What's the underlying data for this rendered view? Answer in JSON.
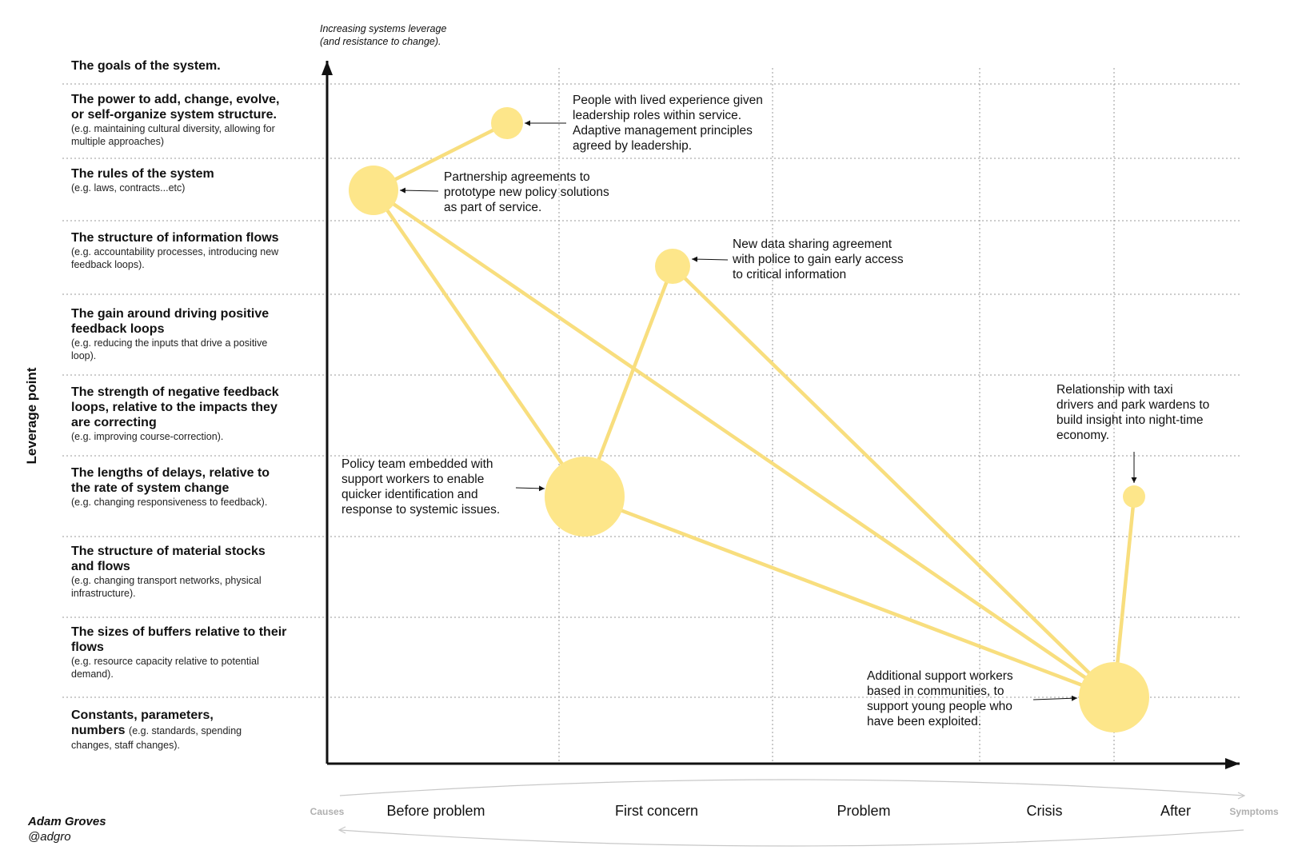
{
  "y_axis_label": "Leverage point",
  "top_note": [
    "Increasing systems leverage",
    "(and resistance to change)."
  ],
  "leverage_points": [
    {
      "title": "The goals of the system.",
      "desc": ""
    },
    {
      "title": "The power to add, change, evolve, or self-organize system structure.",
      "desc": "(e.g. maintaining cultural diversity, allowing for multiple approaches)"
    },
    {
      "title": "The rules of the system",
      "desc": "(e.g. laws, contracts...etc)"
    },
    {
      "title": "The structure of information flows",
      "desc": "(e.g. accountability processes, introducing new feedback loops)."
    },
    {
      "title": "The gain around driving positive feedback loops",
      "desc": "(e.g. reducing the inputs that drive a positive loop)."
    },
    {
      "title": "The strength of negative feedback loops, relative to the impacts they are correcting",
      "desc": "(e.g. improving course-correction)."
    },
    {
      "title": "The lengths of delays, relative to the rate of system change",
      "desc": "(e.g. changing responsiveness to feedback)."
    },
    {
      "title": "The structure of material stocks and flows",
      "desc": "(e.g. changing transport networks, physical infrastructure)."
    },
    {
      "title": "The sizes of buffers relative to their flows",
      "desc": "(e.g. resource capacity relative to potential demand)."
    },
    {
      "title": "Constants, parameters, numbers",
      "desc": "(e.g. standards, spending changes, staff changes)."
    }
  ],
  "stages": [
    "Before problem",
    "First concern",
    "Problem",
    "Crisis",
    "After"
  ],
  "stage_ends": {
    "left": "Causes",
    "right": "Symptoms"
  },
  "annotations": {
    "lived_experience": "People with lived experience given leadership roles within service. Adaptive management principles agreed by leadership.",
    "partnership": "Partnership agreements to prototype new policy solutions as part of service.",
    "data_sharing": "New data sharing agreement with police to gain early access to critical information",
    "taxi": "Relationship with taxi drivers and park wardens to build insight into night-time economy.",
    "policy_team": "Policy team embedded with support workers to enable quicker identification and response to systemic issues.",
    "support_workers": "Additional support workers based in communities, to support young people who have been exploited."
  },
  "author": {
    "name": "Adam Groves",
    "handle": "@adgro"
  },
  "colors": {
    "node": "#fde68a",
    "link": "#f8de7e",
    "axis": "#111111",
    "grid": "#999999",
    "end_label": "#b0b0b0"
  }
}
